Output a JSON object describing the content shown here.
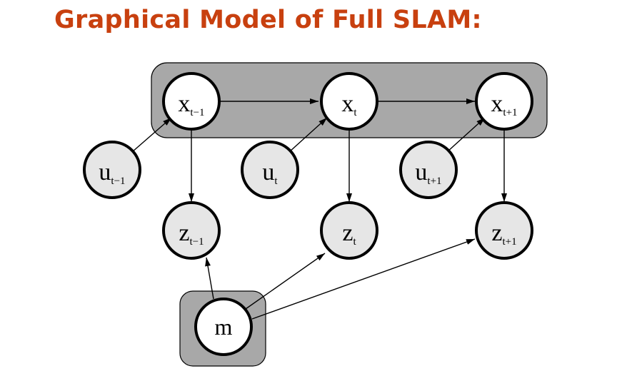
{
  "title": "Graphical Model of Full SLAM:",
  "colors": {
    "title": "#c8400f",
    "plate_fill": "#a8a8a8",
    "hidden_node_fill": "#ffffff",
    "observed_node_fill": "#e6e6e6",
    "stroke": "#000000"
  },
  "nodes": {
    "x_prev": {
      "base": "x",
      "sub": "t−1"
    },
    "x_t": {
      "base": "x",
      "sub": "t"
    },
    "x_next": {
      "base": "x",
      "sub": "t+1"
    },
    "u_prev": {
      "base": "u",
      "sub": "t−1"
    },
    "u_t": {
      "base": "u",
      "sub": "t"
    },
    "u_next": {
      "base": "u",
      "sub": "t+1"
    },
    "z_prev": {
      "base": "z",
      "sub": "t−1"
    },
    "z_t": {
      "base": "z",
      "sub": "t"
    },
    "z_next": {
      "base": "z",
      "sub": "t+1"
    },
    "m": {
      "base": "m",
      "sub": ""
    }
  }
}
